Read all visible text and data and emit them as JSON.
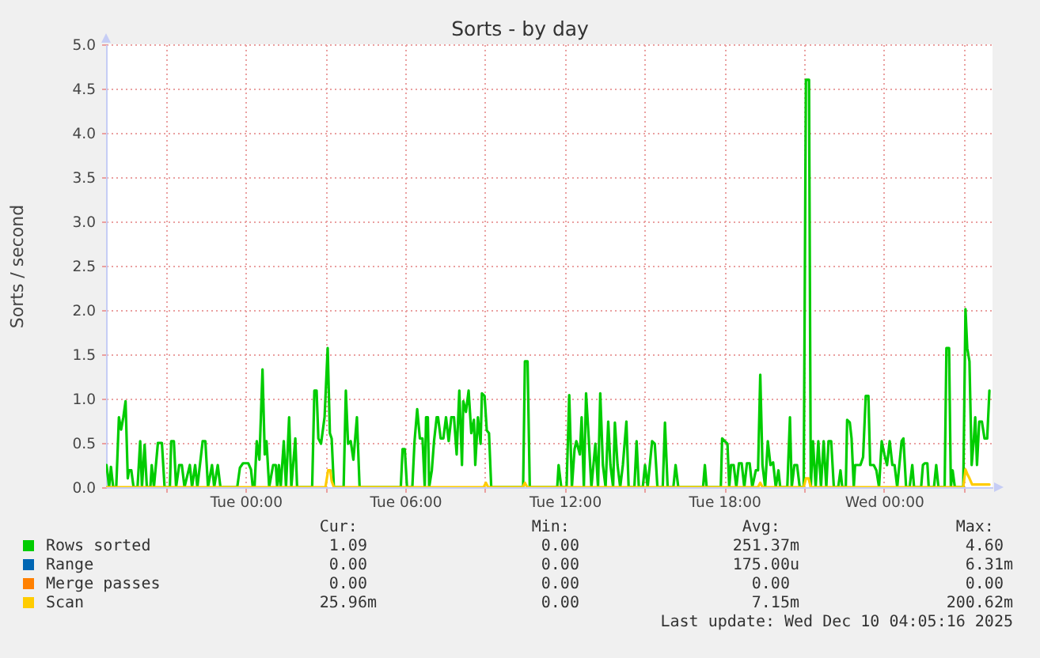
{
  "chart_data": {
    "type": "line",
    "title": "Sorts - by day",
    "ylabel": "Sorts / second",
    "xlim": [
      "2025-12-08T18:45",
      "2025-12-10T04:05"
    ],
    "ylim": [
      0,
      5
    ],
    "xticks": [
      {
        "value": "2025-12-08T21:00",
        "label": null
      },
      {
        "value": "2025-12-09T00:00",
        "label": "Tue 00:00"
      },
      {
        "value": "2025-12-09T03:00",
        "label": null
      },
      {
        "value": "2025-12-09T06:00",
        "label": "Tue 06:00"
      },
      {
        "value": "2025-12-09T09:00",
        "label": null
      },
      {
        "value": "2025-12-09T12:00",
        "label": "Tue 12:00"
      },
      {
        "value": "2025-12-09T15:00",
        "label": null
      },
      {
        "value": "2025-12-09T18:00",
        "label": "Tue 18:00"
      },
      {
        "value": "2025-12-09T21:00",
        "label": null
      },
      {
        "value": "2025-12-10T00:00",
        "label": "Wed 00:00"
      },
      {
        "value": "2025-12-10T03:00",
        "label": null
      }
    ],
    "yticks": [
      {
        "value": 0,
        "label": "0.0"
      },
      0.5,
      {
        "value": 1,
        "label": "1.0"
      },
      1.5,
      {
        "value": 2,
        "label": "2.0"
      },
      2.5,
      {
        "value": 3,
        "label": "3.0"
      },
      3.5,
      {
        "value": 4,
        "label": "4.0"
      },
      4.5,
      {
        "value": 5,
        "label": "5.0"
      }
    ],
    "grid": true,
    "legend": "bottom left",
    "series": [
      {
        "name": "Rows sorted",
        "color": "#00cc00",
        "x": [
          "2025-12-08T18:46",
          "2025-12-08T18:52",
          "2025-12-08T18:56",
          "2025-12-08T19:01",
          "2025-12-08T19:08",
          "2025-12-08T19:14",
          "2025-12-08T19:19",
          "2025-12-08T19:24",
          "2025-12-08T19:29",
          "2025-12-08T19:34",
          "2025-12-08T19:37",
          "2025-12-08T19:42",
          "2025-12-08T19:47",
          "2025-12-08T19:56",
          "2025-12-08T20:02",
          "2025-12-08T20:06",
          "2025-12-08T20:12",
          "2025-12-08T20:17",
          "2025-12-08T20:25",
          "2025-12-08T20:28",
          "2025-12-08T20:33",
          "2025-12-08T20:42",
          "2025-12-08T20:51",
          "2025-12-08T20:57",
          "2025-12-08T21:09",
          "2025-12-08T21:12",
          "2025-12-08T21:18",
          "2025-12-08T21:23",
          "2025-12-08T21:30",
          "2025-12-08T21:36",
          "2025-12-08T21:42",
          "2025-12-08T21:54",
          "2025-12-08T21:59",
          "2025-12-08T22:06",
          "2025-12-08T22:11",
          "2025-12-08T22:23",
          "2025-12-08T22:29",
          "2025-12-08T22:35",
          "2025-12-08T22:44",
          "2025-12-08T22:49",
          "2025-12-08T22:57",
          "2025-12-08T23:03",
          "2025-12-08T23:41",
          "2025-12-08T23:47",
          "2025-12-08T23:54",
          "2025-12-09T00:06",
          "2025-12-09T00:12",
          "2025-12-09T00:16",
          "2025-12-09T00:20",
          "2025-12-09T00:25",
          "2025-12-09T00:31",
          "2025-12-09T00:38",
          "2025-12-09T00:43",
          "2025-12-09T00:47",
          "2025-12-09T00:53",
          "2025-12-09T01:02",
          "2025-12-09T01:08",
          "2025-12-09T01:11",
          "2025-12-09T01:15",
          "2025-12-09T01:19",
          "2025-12-09T01:26",
          "2025-12-09T01:31",
          "2025-12-09T01:38",
          "2025-12-09T01:43",
          "2025-12-09T01:52",
          "2025-12-09T01:56",
          "2025-12-09T02:30",
          "2025-12-09T02:35",
          "2025-12-09T02:40",
          "2025-12-09T02:44",
          "2025-12-09T02:50",
          "2025-12-09T02:58",
          "2025-12-09T03:05",
          "2025-12-09T03:10",
          "2025-12-09T03:14",
          "2025-12-09T03:19",
          "2025-12-09T03:41",
          "2025-12-09T03:46",
          "2025-12-09T03:51",
          "2025-12-09T03:57",
          "2025-12-09T04:03",
          "2025-12-09T04:11",
          "2025-12-09T04:17",
          "2025-12-09T05:50",
          "2025-12-09T05:54",
          "2025-12-09T05:59",
          "2025-12-09T06:04",
          "2025-12-09T06:16",
          "2025-12-09T06:21",
          "2025-12-09T06:27",
          "2025-12-09T06:33",
          "2025-12-09T06:39",
          "2025-12-09T06:44",
          "2025-12-09T06:47",
          "2025-12-09T06:51",
          "2025-12-09T06:54",
          "2025-12-09T07:00",
          "2025-12-09T07:05",
          "2025-12-09T07:11",
          "2025-12-09T07:14",
          "2025-12-09T07:20",
          "2025-12-09T07:26",
          "2025-12-09T07:32",
          "2025-12-09T07:38",
          "2025-12-09T07:44",
          "2025-12-09T07:50",
          "2025-12-09T07:56",
          "2025-12-09T08:02",
          "2025-12-09T08:08",
          "2025-12-09T08:11",
          "2025-12-09T08:17",
          "2025-12-09T08:23",
          "2025-12-09T08:29",
          "2025-12-09T08:35",
          "2025-12-09T08:38",
          "2025-12-09T08:44",
          "2025-12-09T08:50",
          "2025-12-09T08:53",
          "2025-12-09T08:59",
          "2025-12-09T09:04",
          "2025-12-09T09:09",
          "2025-12-09T09:14",
          "2025-12-09T10:26",
          "2025-12-09T10:30",
          "2025-12-09T10:36",
          "2025-12-09T10:41",
          "2025-12-09T11:43",
          "2025-12-09T11:46",
          "2025-12-09T11:52",
          "2025-12-09T12:04",
          "2025-12-09T12:10",
          "2025-12-09T12:16",
          "2025-12-09T12:22",
          "2025-12-09T12:26",
          "2025-12-09T12:34",
          "2025-12-09T12:38",
          "2025-12-09T12:43",
          "2025-12-09T12:48",
          "2025-12-09T12:54",
          "2025-12-09T13:00",
          "2025-12-09T13:09",
          "2025-12-09T13:15",
          "2025-12-09T13:20",
          "2025-12-09T13:26",
          "2025-12-09T13:32",
          "2025-12-09T13:38",
          "2025-12-09T13:43",
          "2025-12-09T13:49",
          "2025-12-09T13:53",
          "2025-12-09T13:59",
          "2025-12-09T14:05",
          "2025-12-09T14:11",
          "2025-12-09T14:19",
          "2025-12-09T14:24",
          "2025-12-09T14:37",
          "2025-12-09T14:42",
          "2025-12-09T14:47",
          "2025-12-09T14:56",
          "2025-12-09T15:01",
          "2025-12-09T15:07",
          "2025-12-09T15:17",
          "2025-12-09T15:23",
          "2025-12-09T15:29",
          "2025-12-09T15:41",
          "2025-12-09T15:46",
          "2025-12-09T15:52",
          "2025-12-09T16:05",
          "2025-12-09T16:10",
          "2025-12-09T16:16",
          "2025-12-09T17:12",
          "2025-12-09T17:16",
          "2025-12-09T17:20",
          "2025-12-09T17:52",
          "2025-12-09T17:55",
          "2025-12-09T18:01",
          "2025-12-09T18:07",
          "2025-12-09T18:11",
          "2025-12-09T18:15",
          "2025-12-09T18:21",
          "2025-12-09T18:27",
          "2025-12-09T18:33",
          "2025-12-09T18:39",
          "2025-12-09T18:45",
          "2025-12-09T18:51",
          "2025-12-09T18:57",
          "2025-12-09T19:03",
          "2025-12-09T19:11",
          "2025-12-09T19:16",
          "2025-12-09T19:21",
          "2025-12-09T19:26",
          "2025-12-09T19:32",
          "2025-12-09T19:38",
          "2025-12-09T19:44",
          "2025-12-09T19:50",
          "2025-12-09T19:56",
          "2025-12-09T20:02",
          "2025-12-09T20:06",
          "2025-12-09T20:22",
          "2025-12-09T20:28",
          "2025-12-09T20:32",
          "2025-12-09T20:38",
          "2025-12-09T20:44",
          "2025-12-09T20:50",
          "2025-12-09T20:59",
          "2025-12-09T21:04",
          "2025-12-09T21:11",
          "2025-12-09T21:15",
          "2025-12-09T21:20",
          "2025-12-09T21:26",
          "2025-12-09T21:32",
          "2025-12-09T21:38",
          "2025-12-09T21:44",
          "2025-12-09T21:50",
          "2025-12-09T21:55",
          "2025-12-09T22:01",
          "2025-12-09T22:07",
          "2025-12-09T22:17",
          "2025-12-09T22:22",
          "2025-12-09T22:26",
          "2025-12-09T22:34",
          "2025-12-09T22:37",
          "2025-12-09T22:43",
          "2025-12-09T22:47",
          "2025-12-09T22:52",
          "2025-12-09T22:55",
          "2025-12-09T23:01",
          "2025-12-09T23:07",
          "2025-12-09T23:13",
          "2025-12-09T23:19",
          "2025-12-09T23:25",
          "2025-12-09T23:29",
          "2025-12-09T23:37",
          "2025-12-09T23:43",
          "2025-12-09T23:49",
          "2025-12-09T23:55",
          "2025-12-10T00:01",
          "2025-12-10T00:07",
          "2025-12-10T00:13",
          "2025-12-10T00:19",
          "2025-12-10T00:24",
          "2025-12-10T00:30",
          "2025-12-10T00:40",
          "2025-12-10T00:44",
          "2025-12-10T00:50",
          "2025-12-10T00:58",
          "2025-12-10T01:04",
          "2025-12-10T01:08",
          "2025-12-10T01:24",
          "2025-12-10T01:28",
          "2025-12-10T01:32",
          "2025-12-10T01:38",
          "2025-12-10T01:41",
          "2025-12-10T01:53",
          "2025-12-10T01:58",
          "2025-12-10T02:03",
          "2025-12-10T02:17",
          "2025-12-10T02:21",
          "2025-12-10T02:27",
          "2025-12-10T02:31",
          "2025-12-10T02:35",
          "2025-12-10T02:40",
          "2025-12-10T02:59",
          "2025-12-10T03:04",
          "2025-12-10T03:08",
          "2025-12-10T03:13",
          "2025-12-10T03:18",
          "2025-12-10T03:23",
          "2025-12-10T03:26",
          "2025-12-10T03:30",
          "2025-12-10T03:35",
          "2025-12-10T03:41",
          "2025-12-10T03:47",
          "2025-12-10T03:53",
          "2025-12-10T03:58"
        ],
        "values": [
          0.25,
          0,
          0.23,
          0,
          0,
          0.79,
          0.65,
          0.79,
          0.97,
          0.1,
          0.19,
          0.19,
          0,
          0,
          0.52,
          0,
          0.48,
          0,
          0,
          0.25,
          0,
          0.5,
          0.5,
          0,
          0,
          0.52,
          0.52,
          0,
          0.25,
          0.25,
          0,
          0.25,
          0,
          0.25,
          0,
          0.52,
          0.52,
          0,
          0.25,
          0,
          0.25,
          0,
          0,
          0.22,
          0.27,
          0.27,
          0.2,
          0,
          0,
          0.52,
          0.31,
          1.33,
          0.37,
          0.52,
          0,
          0.25,
          0.25,
          0,
          0.25,
          0,
          0.52,
          0,
          0.79,
          0,
          0.55,
          0,
          0,
          1.09,
          1.09,
          0.55,
          0.49,
          0.79,
          1.57,
          0.61,
          0.55,
          0,
          0,
          1.09,
          0.49,
          0.52,
          0.31,
          0.79,
          0,
          0,
          0.43,
          0.43,
          0,
          0,
          0.52,
          0.88,
          0.55,
          0.55,
          0,
          0.79,
          0.79,
          0,
          0.19,
          0.52,
          0.79,
          0.79,
          0.55,
          0.55,
          0.79,
          0.52,
          0.79,
          0.79,
          0.37,
          1.09,
          0.25,
          0.97,
          0.85,
          1.09,
          0.61,
          0.76,
          0.25,
          0.79,
          0.49,
          1.06,
          1.03,
          0.64,
          0.61,
          0,
          0,
          1.42,
          1.42,
          0,
          0,
          0.25,
          0,
          0,
          1.04,
          0,
          0.43,
          0.52,
          0.37,
          0.79,
          0,
          1.06,
          0.55,
          0,
          0.49,
          0,
          1.06,
          0.25,
          0,
          0.74,
          0.25,
          0,
          0.73,
          0.25,
          0,
          0.25,
          0.74,
          0,
          0,
          0.52,
          0,
          0,
          0.25,
          0,
          0.52,
          0.49,
          0,
          0,
          0.73,
          0,
          0,
          0.25,
          0,
          0,
          0.25,
          0,
          0,
          0.55,
          0.52,
          0.49,
          0,
          0.25,
          0.25,
          0,
          0.27,
          0.27,
          0,
          0.27,
          0.27,
          0,
          0.19,
          0.19,
          1.27,
          0.25,
          0,
          0.52,
          0.25,
          0.28,
          0,
          0.19,
          0,
          0,
          0.79,
          0,
          0.25,
          0.25,
          0,
          0,
          4.6,
          4.6,
          0,
          0.52,
          0,
          0.52,
          0,
          0.52,
          0,
          0.52,
          0.52,
          0,
          0,
          0.19,
          0,
          0,
          0.76,
          0.73,
          0.55,
          0,
          0.25,
          0.25,
          0.25,
          0.34,
          1.03,
          1.03,
          0.25,
          0.25,
          0.19,
          0,
          0.52,
          0.37,
          0.25,
          0.52,
          0.25,
          0.25,
          0,
          0.52,
          0.55,
          0,
          0,
          0.25,
          0,
          0,
          0.25,
          0.27,
          0.27,
          0,
          0,
          0.25,
          0,
          0,
          1.57,
          1.57,
          0,
          0.19,
          0,
          0,
          2.01,
          1.57,
          1.42,
          0.25,
          0.55,
          0.79,
          0.25,
          0.74,
          0.74,
          0.55,
          0.55,
          1.09
        ]
      },
      {
        "name": "Range",
        "color": "#0066b3"
      },
      {
        "name": "Merge passes",
        "color": "#ff8000"
      },
      {
        "name": "Scan",
        "color": "#ffcc00",
        "x": [
          "2025-12-08T18:45",
          "2025-12-09T03:00",
          "2025-12-09T03:06",
          "2025-12-09T03:11",
          "2025-12-09T03:14",
          "2025-12-09T03:19",
          "2025-12-09T08:57",
          "2025-12-09T09:02",
          "2025-12-09T09:07",
          "2025-12-09T10:25",
          "2025-12-09T10:30",
          "2025-12-09T10:35",
          "2025-12-09T19:16",
          "2025-12-09T19:21",
          "2025-12-09T19:26",
          "2025-12-09T20:59",
          "2025-12-09T21:04",
          "2025-12-09T21:10",
          "2025-12-09T21:15",
          "2025-12-10T02:59",
          "2025-12-10T03:04",
          "2025-12-10T03:08",
          "2025-12-10T03:13",
          "2025-12-10T03:19",
          "2025-12-10T03:58"
        ],
        "values": [
          0,
          0,
          0.19,
          0.19,
          0.07,
          0,
          0,
          0.05,
          0,
          0,
          0.05,
          0,
          0,
          0.05,
          0,
          0,
          0.1,
          0.1,
          0,
          0,
          0.2,
          0.15,
          0.1,
          0.03,
          0.03
        ]
      }
    ],
    "annotations": [
      "Cur:",
      "Min:",
      "Avg:",
      "Max:",
      "1.09",
      "0.00",
      "251.37m",
      "4.60",
      "0.00",
      "0.00",
      "175.00u",
      "6.31m",
      "0.00",
      "0.00",
      "0.00",
      "0.00",
      "25.96m",
      "0.00",
      "7.15m",
      "200.62m",
      "Last update: Wed Dec 10 04:05:16 2025"
    ]
  }
}
